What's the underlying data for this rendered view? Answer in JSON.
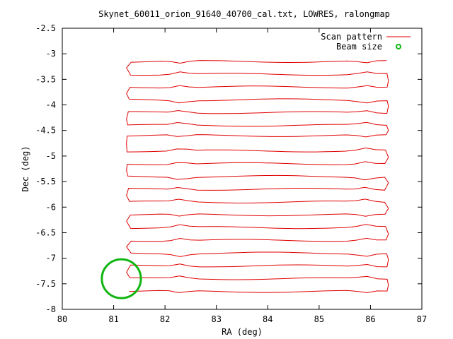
{
  "chart_data": {
    "type": "line",
    "title": "Skynet_60011_orion_91640_40700_cal.txt, LOWRES, ralongmap",
    "xlabel": "RA (deg)",
    "ylabel": "Dec (deg)",
    "xlim": [
      80,
      87
    ],
    "ylim": [
      -8,
      -2.5
    ],
    "x_ticks": [
      "80",
      "81",
      "82",
      "83",
      "84",
      "85",
      "86",
      "87"
    ],
    "y_ticks": [
      "-2.5",
      "-3",
      "-3.5",
      "-4",
      "-4.5",
      "-5",
      "-5.5",
      "-6",
      "-6.5",
      "-7",
      "-7.5",
      "-8"
    ],
    "grid": false,
    "legend_position": "top-right",
    "colors": {
      "scan": "#e00000",
      "beam": "#11b511",
      "axis": "#000000"
    },
    "legend": [
      {
        "label": "Scan pattern",
        "symbol": "line",
        "color": "#e00000"
      },
      {
        "label": "Beam size",
        "symbol": "circle-point",
        "color": "#11b511"
      }
    ],
    "series": [
      {
        "name": "Scan pattern",
        "scan_rows_dec": [
          -7.65,
          -7.4,
          -7.15,
          -6.9,
          -6.65,
          -6.4,
          -6.15,
          -5.9,
          -5.65,
          -5.4,
          -5.15,
          -4.9,
          -4.6,
          -4.4,
          -4.15,
          -3.9,
          -3.65,
          -3.4,
          -3.15
        ],
        "ra_start": 81.3,
        "ra_end": 86.3,
        "ra_turn_left": 81.25,
        "ra_turn_right": 86.35,
        "wiggle_ra": [
          82.3,
          85.9
        ]
      },
      {
        "name": "Beam size",
        "center_ra": 81.15,
        "center_dec": -7.4,
        "radius_deg": 0.38
      }
    ]
  }
}
